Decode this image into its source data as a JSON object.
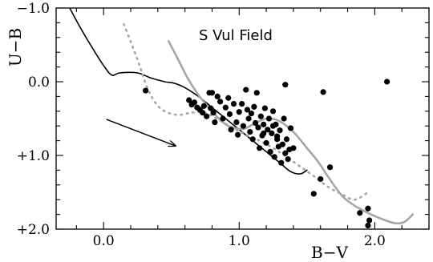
{
  "chart_data": {
    "type": "scatter",
    "title": "S Vul Field",
    "xlabel": "B−V",
    "ylabel": "U−B",
    "xlim": [
      -0.35,
      2.4
    ],
    "ylim": [
      2.0,
      -1.0
    ],
    "x_ticks": [
      0.0,
      1.0,
      2.0
    ],
    "x_tick_labels": [
      "0.0",
      "1.0",
      "2.0"
    ],
    "y_ticks": [
      -1.0,
      0.0,
      1.0,
      2.0
    ],
    "y_tick_labels": [
      "−1.0",
      "0.0",
      "+1.0",
      "+2.0"
    ],
    "grid": false,
    "legend": "none",
    "series": [
      {
        "kind": "points",
        "color": "#000000",
        "points": [
          [
            0.31,
            0.12
          ],
          [
            0.63,
            0.25
          ],
          [
            0.65,
            0.31
          ],
          [
            0.67,
            0.28
          ],
          [
            0.69,
            0.35
          ],
          [
            0.71,
            0.38
          ],
          [
            0.73,
            0.42
          ],
          [
            0.74,
            0.33
          ],
          [
            0.76,
            0.47
          ],
          [
            0.78,
            0.15
          ],
          [
            0.79,
            0.36
          ],
          [
            0.8,
            0.15
          ],
          [
            0.81,
            0.42
          ],
          [
            0.82,
            0.55
          ],
          [
            0.84,
            0.2
          ],
          [
            0.86,
            0.27
          ],
          [
            0.88,
            0.5
          ],
          [
            0.9,
            0.35
          ],
          [
            0.92,
            0.22
          ],
          [
            0.93,
            0.44
          ],
          [
            0.94,
            0.65
          ],
          [
            0.96,
            0.3
          ],
          [
            0.98,
            0.55
          ],
          [
            0.99,
            0.72
          ],
          [
            1.0,
            0.41
          ],
          [
            1.02,
            0.3
          ],
          [
            1.03,
            0.6
          ],
          [
            1.05,
            0.11
          ],
          [
            1.06,
            0.38
          ],
          [
            1.07,
            0.5
          ],
          [
            1.08,
            0.68
          ],
          [
            1.09,
            0.43
          ],
          [
            1.1,
            0.78
          ],
          [
            1.11,
            0.34
          ],
          [
            1.12,
            0.56
          ],
          [
            1.13,
            0.15
          ],
          [
            1.14,
            0.62
          ],
          [
            1.15,
            0.9
          ],
          [
            1.16,
            0.47
          ],
          [
            1.17,
            0.73
          ],
          [
            1.18,
            0.58
          ],
          [
            1.19,
            0.36
          ],
          [
            1.2,
            0.83
          ],
          [
            1.21,
            0.65
          ],
          [
            1.22,
            0.5
          ],
          [
            1.23,
            0.95
          ],
          [
            1.24,
            0.7
          ],
          [
            1.25,
            0.4
          ],
          [
            1.26,
            1.02
          ],
          [
            1.27,
            0.58
          ],
          [
            1.28,
            0.78
          ],
          [
            1.29,
            0.88
          ],
          [
            1.3,
            0.66
          ],
          [
            1.31,
            1.1
          ],
          [
            1.32,
            0.85
          ],
          [
            1.33,
            0.5
          ],
          [
            1.34,
            0.97
          ],
          [
            1.35,
            0.78
          ],
          [
            1.36,
            1.05
          ],
          [
            1.37,
            0.92
          ],
          [
            1.34,
            0.04
          ],
          [
            1.4,
            0.9
          ],
          [
            1.38,
            0.63
          ],
          [
            1.25,
            0.6
          ],
          [
            1.18,
            0.7
          ],
          [
            1.28,
            0.74
          ],
          [
            1.62,
            0.14
          ],
          [
            1.67,
            1.16
          ],
          [
            1.6,
            1.32
          ],
          [
            1.55,
            1.52
          ],
          [
            1.89,
            1.78
          ],
          [
            1.95,
            1.72
          ],
          [
            1.96,
            1.88
          ],
          [
            1.95,
            1.95
          ],
          [
            2.09,
            0.0
          ]
        ]
      },
      {
        "kind": "line",
        "style": "solid",
        "color": "#000000",
        "points": [
          [
            -0.25,
            -1.0
          ],
          [
            -0.17,
            -0.73
          ],
          [
            -0.08,
            -0.45
          ],
          [
            0.0,
            -0.22
          ],
          [
            0.06,
            -0.09
          ],
          [
            0.12,
            -0.12
          ],
          [
            0.25,
            -0.12
          ],
          [
            0.35,
            -0.05
          ],
          [
            0.45,
            0.0
          ],
          [
            0.52,
            0.02
          ],
          [
            0.6,
            0.08
          ],
          [
            0.7,
            0.2
          ],
          [
            0.8,
            0.35
          ],
          [
            0.9,
            0.5
          ],
          [
            1.0,
            0.65
          ],
          [
            1.1,
            0.8
          ],
          [
            1.2,
            0.95
          ],
          [
            1.3,
            1.1
          ],
          [
            1.38,
            1.22
          ],
          [
            1.45,
            1.25
          ],
          [
            1.5,
            1.2
          ]
        ]
      },
      {
        "kind": "line",
        "style": "solid",
        "color": "#a6a6a6",
        "points": [
          [
            0.48,
            -0.55
          ],
          [
            0.55,
            -0.3
          ],
          [
            0.62,
            -0.05
          ],
          [
            0.7,
            0.18
          ],
          [
            0.78,
            0.36
          ],
          [
            0.85,
            0.5
          ],
          [
            0.92,
            0.6
          ],
          [
            1.0,
            0.64
          ],
          [
            1.05,
            0.63
          ],
          [
            1.12,
            0.56
          ],
          [
            1.2,
            0.5
          ],
          [
            1.28,
            0.52
          ],
          [
            1.35,
            0.6
          ],
          [
            1.42,
            0.72
          ],
          [
            1.5,
            0.9
          ],
          [
            1.58,
            1.08
          ],
          [
            1.66,
            1.3
          ],
          [
            1.76,
            1.55
          ],
          [
            1.85,
            1.68
          ],
          [
            1.95,
            1.78
          ],
          [
            2.05,
            1.86
          ],
          [
            2.15,
            1.92
          ],
          [
            2.22,
            1.9
          ],
          [
            2.28,
            1.8
          ]
        ]
      },
      {
        "kind": "line",
        "style": "dotted",
        "color": "#a6a6a6",
        "points": [
          [
            0.15,
            -0.78
          ],
          [
            0.25,
            -0.3
          ],
          [
            0.32,
            0.07
          ],
          [
            0.38,
            0.28
          ],
          [
            0.45,
            0.4
          ],
          [
            0.55,
            0.45
          ],
          [
            0.65,
            0.42
          ],
          [
            0.75,
            0.42
          ],
          [
            0.85,
            0.52
          ],
          [
            0.95,
            0.62
          ],
          [
            1.05,
            0.72
          ],
          [
            1.15,
            0.8
          ],
          [
            1.25,
            0.9
          ],
          [
            1.35,
            1.02
          ],
          [
            1.45,
            1.15
          ],
          [
            1.55,
            1.28
          ],
          [
            1.65,
            1.42
          ],
          [
            1.75,
            1.52
          ],
          [
            1.85,
            1.6
          ],
          [
            1.95,
            1.5
          ]
        ]
      }
    ],
    "annotations": [
      {
        "kind": "arrow",
        "from": [
          0.02,
          0.51
        ],
        "to": [
          0.53,
          0.87
        ]
      }
    ]
  }
}
